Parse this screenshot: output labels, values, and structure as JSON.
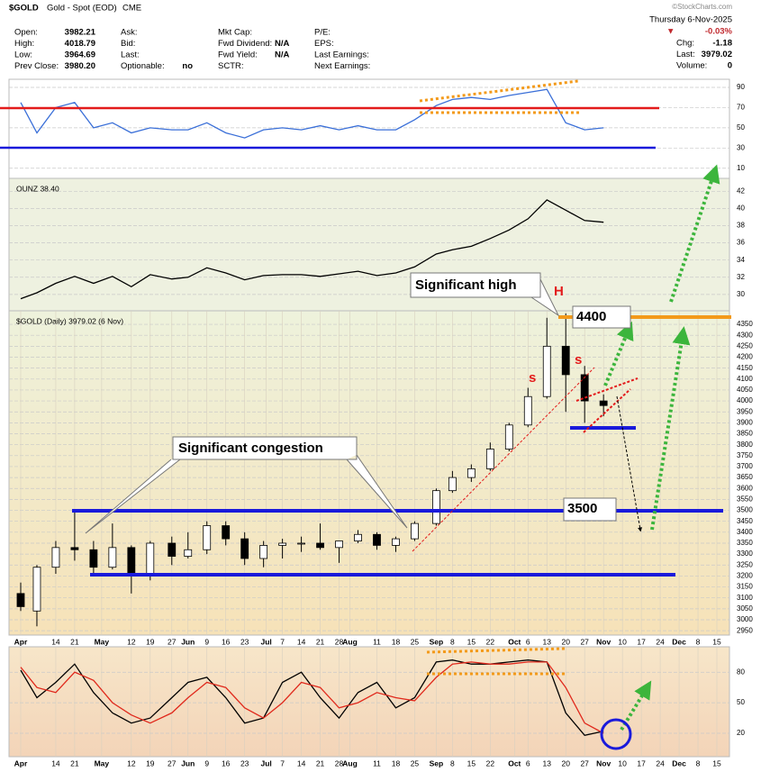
{
  "header": {
    "symbol": "$GOLD",
    "name": "Gold - Spot (EOD)",
    "exchange": "CME",
    "date": "Thursday  6-Nov-2025",
    "copyright": "©StockCharts.com",
    "columns": [
      [
        {
          "label": "Open:",
          "value": "3982.21"
        },
        {
          "label": "High:",
          "value": "4018.79"
        },
        {
          "label": "Low:",
          "value": "3964.69"
        },
        {
          "label": "Prev Close:",
          "value": "3980.20"
        }
      ],
      [
        {
          "label": "Ask:"
        },
        {
          "label": "Bid:"
        },
        {
          "label": "Last:"
        },
        {
          "label": "Optionable:",
          "value": "no"
        }
      ],
      [
        {
          "label": "Mkt Cap:"
        },
        {
          "label": "Fwd Dividend:",
          "value": "N/A"
        },
        {
          "label": "Fwd Yield:",
          "value": "N/A"
        },
        {
          "label": "SCTR:"
        }
      ],
      [
        {
          "label": "P/E:"
        },
        {
          "label": "EPS:"
        },
        {
          "label": "Last Earnings:"
        },
        {
          "label": "Next Earnings:"
        }
      ]
    ],
    "arrow": "▼",
    "change_pct": "-0.03%",
    "right": [
      {
        "label": "Chg:",
        "value": "-1.18"
      },
      {
        "label": "Last:",
        "value": "3979.02"
      },
      {
        "label": "Volume:",
        "value": "0"
      }
    ]
  },
  "annotations": {
    "high": "Significant high",
    "h": "H",
    "level_high": "4400",
    "s1": "s",
    "s2": "s",
    "congestion": "Significant congestion",
    "level_mid": "3500"
  },
  "chart_data": [
    {
      "type": "line",
      "xlim": [
        "2025-03-29",
        "2025-12-18"
      ],
      "ylim": [
        0,
        98
      ],
      "yticks": [
        10,
        30,
        50,
        70,
        90
      ],
      "grid": true,
      "x": [
        "2025-04-01",
        "2025-04-07",
        "2025-04-14",
        "2025-04-21",
        "2025-04-28",
        "2025-05-05",
        "2025-05-12",
        "2025-05-19",
        "2025-05-27",
        "2025-06-02",
        "2025-06-09",
        "2025-06-16",
        "2025-06-23",
        "2025-06-30",
        "2025-07-07",
        "2025-07-14",
        "2025-07-21",
        "2025-07-28",
        "2025-08-04",
        "2025-08-11",
        "2025-08-18",
        "2025-08-25",
        "2025-09-02",
        "2025-09-08",
        "2025-09-15",
        "2025-09-22",
        "2025-09-29",
        "2025-10-06",
        "2025-10-13",
        "2025-10-20",
        "2025-10-27",
        "2025-11-03"
      ],
      "series": [
        {
          "color": "#3a6fd8",
          "values": [
            75,
            45,
            70,
            75,
            50,
            55,
            45,
            50,
            48,
            48,
            55,
            45,
            40,
            48,
            50,
            48,
            52,
            48,
            52,
            48,
            48,
            58,
            72,
            78,
            80,
            78,
            82,
            85,
            88,
            55,
            48,
            50
          ]
        }
      ]
    },
    {
      "type": "line",
      "label": "OUNZ 38.40",
      "xlim": [
        "2025-03-29",
        "2025-12-18"
      ],
      "ylim": [
        28.1,
        43.5
      ],
      "yticks": [
        30,
        32,
        34,
        36,
        38,
        40,
        42
      ],
      "grid": true,
      "x": [
        "2025-04-01",
        "2025-04-07",
        "2025-04-14",
        "2025-04-21",
        "2025-04-28",
        "2025-05-05",
        "2025-05-12",
        "2025-05-19",
        "2025-05-27",
        "2025-06-02",
        "2025-06-09",
        "2025-06-16",
        "2025-06-23",
        "2025-06-30",
        "2025-07-07",
        "2025-07-14",
        "2025-07-21",
        "2025-07-28",
        "2025-08-04",
        "2025-08-11",
        "2025-08-18",
        "2025-08-25",
        "2025-09-02",
        "2025-09-08",
        "2025-09-15",
        "2025-09-22",
        "2025-09-29",
        "2025-10-06",
        "2025-10-13",
        "2025-10-20",
        "2025-10-27",
        "2025-11-03"
      ],
      "series": [
        {
          "color": "#000000",
          "values": [
            29.5,
            30.2,
            31.3,
            32.1,
            31.3,
            32.1,
            30.9,
            32.3,
            31.8,
            32.0,
            33.1,
            32.5,
            31.7,
            32.2,
            32.3,
            32.3,
            32.1,
            32.4,
            32.7,
            32.2,
            32.5,
            33.2,
            34.7,
            35.2,
            35.6,
            36.5,
            37.5,
            38.8,
            41.0,
            39.8,
            38.6,
            38.4
          ]
        }
      ]
    },
    {
      "type": "candlestick",
      "label": "$GOLD (Daily) 3979.02 (6 Nov)",
      "xlim": [
        "2025-03-29",
        "2025-12-18"
      ],
      "ylim": [
        2930,
        4412
      ],
      "yticks": [
        2950,
        3000,
        3050,
        3100,
        3150,
        3200,
        3250,
        3300,
        3350,
        3400,
        3450,
        3500,
        3550,
        3600,
        3650,
        3700,
        3750,
        3800,
        3850,
        3900,
        3950,
        4000,
        4050,
        4100,
        4150,
        4200,
        4250,
        4300,
        4350
      ],
      "grid": true,
      "xticks": [
        {
          "value": "2025-04-01",
          "label": "Apr"
        },
        {
          "value": "2025-04-14",
          "label": "14"
        },
        {
          "value": "2025-04-21",
          "label": "21"
        },
        {
          "value": "2025-05-01",
          "label": "May"
        },
        {
          "value": "2025-05-12",
          "label": "12"
        },
        {
          "value": "2025-05-19",
          "label": "19"
        },
        {
          "value": "2025-05-27",
          "label": "27"
        },
        {
          "value": "2025-06-02",
          "label": "Jun"
        },
        {
          "value": "2025-06-09",
          "label": "9"
        },
        {
          "value": "2025-06-16",
          "label": "16"
        },
        {
          "value": "2025-06-23",
          "label": "23"
        },
        {
          "value": "2025-07-01",
          "label": "Jul"
        },
        {
          "value": "2025-07-07",
          "label": "7"
        },
        {
          "value": "2025-07-14",
          "label": "14"
        },
        {
          "value": "2025-07-21",
          "label": "21"
        },
        {
          "value": "2025-07-28",
          "label": "28"
        },
        {
          "value": "2025-08-01",
          "label": "Aug"
        },
        {
          "value": "2025-08-11",
          "label": "11"
        },
        {
          "value": "2025-08-18",
          "label": "18"
        },
        {
          "value": "2025-08-25",
          "label": "25"
        },
        {
          "value": "2025-09-02",
          "label": "Sep"
        },
        {
          "value": "2025-09-08",
          "label": "8"
        },
        {
          "value": "2025-09-15",
          "label": "15"
        },
        {
          "value": "2025-09-22",
          "label": "22"
        },
        {
          "value": "2025-10-01",
          "label": "Oct"
        },
        {
          "value": "2025-10-06",
          "label": "6"
        },
        {
          "value": "2025-10-13",
          "label": "13"
        },
        {
          "value": "2025-10-20",
          "label": "20"
        },
        {
          "value": "2025-10-27",
          "label": "27"
        },
        {
          "value": "2025-11-03",
          "label": "Nov"
        },
        {
          "value": "2025-11-10",
          "label": "10"
        },
        {
          "value": "2025-11-17",
          "label": "17"
        },
        {
          "value": "2025-11-24",
          "label": "24"
        },
        {
          "value": "2025-12-01",
          "label": "Dec"
        },
        {
          "value": "2025-12-08",
          "label": "8"
        },
        {
          "value": "2025-12-15",
          "label": "15"
        }
      ],
      "x": [
        "2025-04-01",
        "2025-04-07",
        "2025-04-14",
        "2025-04-21",
        "2025-04-28",
        "2025-05-05",
        "2025-05-12",
        "2025-05-19",
        "2025-05-27",
        "2025-06-02",
        "2025-06-09",
        "2025-06-16",
        "2025-06-23",
        "2025-06-30",
        "2025-07-07",
        "2025-07-14",
        "2025-07-21",
        "2025-07-28",
        "2025-08-04",
        "2025-08-11",
        "2025-08-18",
        "2025-08-25",
        "2025-09-02",
        "2025-09-08",
        "2025-09-15",
        "2025-09-22",
        "2025-09-29",
        "2025-10-06",
        "2025-10-13",
        "2025-10-20",
        "2025-10-27",
        "2025-11-03"
      ],
      "open": [
        3120,
        3040,
        3240,
        3330,
        3320,
        3240,
        3330,
        3200,
        3350,
        3290,
        3320,
        3430,
        3370,
        3280,
        3340,
        3350,
        3350,
        3330,
        3360,
        3390,
        3340,
        3370,
        3440,
        3590,
        3650,
        3690,
        3780,
        3890,
        4020,
        4250,
        4120,
        4000
      ],
      "high": [
        3170,
        3250,
        3360,
        3500,
        3360,
        3440,
        3340,
        3360,
        3380,
        3400,
        3450,
        3450,
        3400,
        3360,
        3370,
        3380,
        3440,
        3360,
        3410,
        3400,
        3380,
        3450,
        3600,
        3680,
        3710,
        3810,
        3900,
        4060,
        4380,
        4400,
        4160,
        4030
      ],
      "low": [
        3040,
        2970,
        3210,
        3270,
        3200,
        3230,
        3120,
        3180,
        3250,
        3280,
        3300,
        3340,
        3250,
        3240,
        3280,
        3310,
        3320,
        3260,
        3350,
        3320,
        3310,
        3360,
        3430,
        3580,
        3630,
        3680,
        3770,
        3880,
        4010,
        3950,
        3900,
        3930
      ],
      "close": [
        3060,
        3240,
        3330,
        3320,
        3240,
        3330,
        3200,
        3350,
        3290,
        3320,
        3430,
        3370,
        3280,
        3340,
        3350,
        3350,
        3330,
        3360,
        3390,
        3340,
        3370,
        3440,
        3590,
        3650,
        3690,
        3780,
        3890,
        4020,
        4250,
        4120,
        4000,
        3979.02
      ],
      "color_up": "#ffffff",
      "color_down": "#000000"
    },
    {
      "type": "line",
      "xlim": [
        "2025-03-29",
        "2025-12-18"
      ],
      "ylim": [
        -3,
        105
      ],
      "yticks": [
        20,
        50,
        80
      ],
      "grid": true,
      "xticks": [
        {
          "value": "2025-04-01",
          "label": "Apr"
        },
        {
          "value": "2025-04-14",
          "label": "14"
        },
        {
          "value": "2025-04-21",
          "label": "21"
        },
        {
          "value": "2025-05-01",
          "label": "May"
        },
        {
          "value": "2025-05-12",
          "label": "12"
        },
        {
          "value": "2025-05-19",
          "label": "19"
        },
        {
          "value": "2025-05-27",
          "label": "27"
        },
        {
          "value": "2025-06-02",
          "label": "Jun"
        },
        {
          "value": "2025-06-09",
          "label": "9"
        },
        {
          "value": "2025-06-16",
          "label": "16"
        },
        {
          "value": "2025-06-23",
          "label": "23"
        },
        {
          "value": "2025-07-01",
          "label": "Jul"
        },
        {
          "value": "2025-07-07",
          "label": "7"
        },
        {
          "value": "2025-07-14",
          "label": "14"
        },
        {
          "value": "2025-07-21",
          "label": "21"
        },
        {
          "value": "2025-07-28",
          "label": "28"
        },
        {
          "value": "2025-08-01",
          "label": "Aug"
        },
        {
          "value": "2025-08-11",
          "label": "11"
        },
        {
          "value": "2025-08-18",
          "label": "18"
        },
        {
          "value": "2025-08-25",
          "label": "25"
        },
        {
          "value": "2025-09-02",
          "label": "Sep"
        },
        {
          "value": "2025-09-08",
          "label": "8"
        },
        {
          "value": "2025-09-15",
          "label": "15"
        },
        {
          "value": "2025-09-22",
          "label": "22"
        },
        {
          "value": "2025-10-01",
          "label": "Oct"
        },
        {
          "value": "2025-10-06",
          "label": "6"
        },
        {
          "value": "2025-10-13",
          "label": "13"
        },
        {
          "value": "2025-10-20",
          "label": "20"
        },
        {
          "value": "2025-10-27",
          "label": "27"
        },
        {
          "value": "2025-11-03",
          "label": "Nov"
        },
        {
          "value": "2025-11-10",
          "label": "10"
        },
        {
          "value": "2025-11-17",
          "label": "17"
        },
        {
          "value": "2025-11-24",
          "label": "24"
        },
        {
          "value": "2025-12-01",
          "label": "Dec"
        },
        {
          "value": "2025-12-08",
          "label": "8"
        },
        {
          "value": "2025-12-15",
          "label": "15"
        }
      ],
      "x": [
        "2025-04-01",
        "2025-04-07",
        "2025-04-14",
        "2025-04-21",
        "2025-04-28",
        "2025-05-05",
        "2025-05-12",
        "2025-05-19",
        "2025-05-27",
        "2025-06-02",
        "2025-06-09",
        "2025-06-16",
        "2025-06-23",
        "2025-06-30",
        "2025-07-07",
        "2025-07-14",
        "2025-07-21",
        "2025-07-28",
        "2025-08-04",
        "2025-08-11",
        "2025-08-18",
        "2025-08-25",
        "2025-09-02",
        "2025-09-08",
        "2025-09-15",
        "2025-09-22",
        "2025-09-29",
        "2025-10-06",
        "2025-10-13",
        "2025-10-20",
        "2025-10-27",
        "2025-11-03"
      ],
      "series": [
        {
          "color": "#000000",
          "values": [
            82,
            55,
            70,
            88,
            60,
            40,
            30,
            35,
            55,
            70,
            75,
            55,
            30,
            35,
            70,
            80,
            55,
            35,
            60,
            70,
            45,
            55,
            90,
            92,
            88,
            88,
            90,
            92,
            90,
            40,
            18,
            22
          ]
        },
        {
          "color": "#e0291c",
          "values": [
            85,
            65,
            60,
            80,
            72,
            50,
            38,
            30,
            40,
            55,
            70,
            65,
            45,
            35,
            50,
            70,
            65,
            45,
            50,
            60,
            55,
            52,
            75,
            88,
            90,
            88,
            88,
            90,
            90,
            65,
            30,
            20
          ]
        }
      ]
    }
  ]
}
